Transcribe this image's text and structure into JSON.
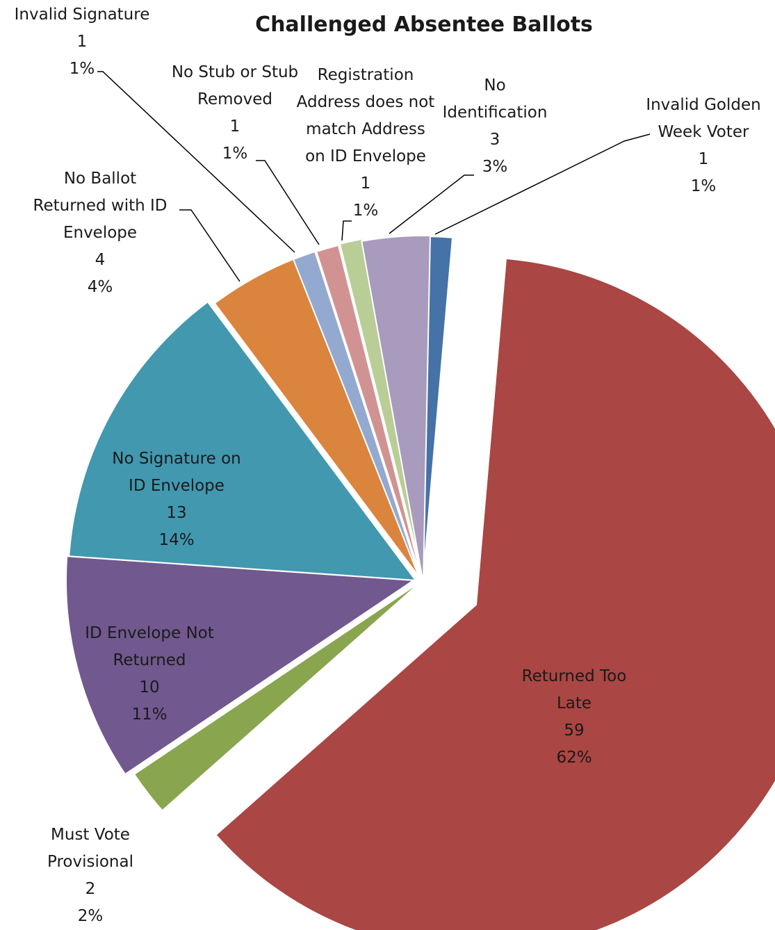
{
  "chart_data": {
    "type": "pie",
    "title": "Challenged Absentee Ballots",
    "slices": [
      {
        "label": "Invalid Golden Week Voter",
        "value": 1,
        "percent": "1%",
        "color": "#4572A7"
      },
      {
        "label": "Returned Too Late",
        "value": 59,
        "percent": "62%",
        "color": "#AA4643"
      },
      {
        "label": "Must Vote Provisional",
        "value": 2,
        "percent": "2%",
        "color": "#89A54E"
      },
      {
        "label": "ID Envelope Not Returned",
        "value": 10,
        "percent": "11%",
        "color": "#71588F"
      },
      {
        "label": "No Signature on ID Envelope",
        "value": 13,
        "percent": "14%",
        "color": "#4198AF"
      },
      {
        "label": "No Ballot Returned with ID Envelope",
        "value": 4,
        "percent": "4%",
        "color": "#DB843D"
      },
      {
        "label": "Invalid Signature",
        "value": 1,
        "percent": "1%",
        "color": "#93A9CF"
      },
      {
        "label": "No Stub or Stub Removed",
        "value": 1,
        "percent": "1%",
        "color": "#D19392"
      },
      {
        "label": "Registration Address does not match Address on ID Envelope",
        "value": 1,
        "percent": "1%",
        "color": "#B9CD96"
      },
      {
        "label": "No Identification",
        "value": 3,
        "percent": "3%",
        "color": "#A99BBD"
      }
    ]
  }
}
